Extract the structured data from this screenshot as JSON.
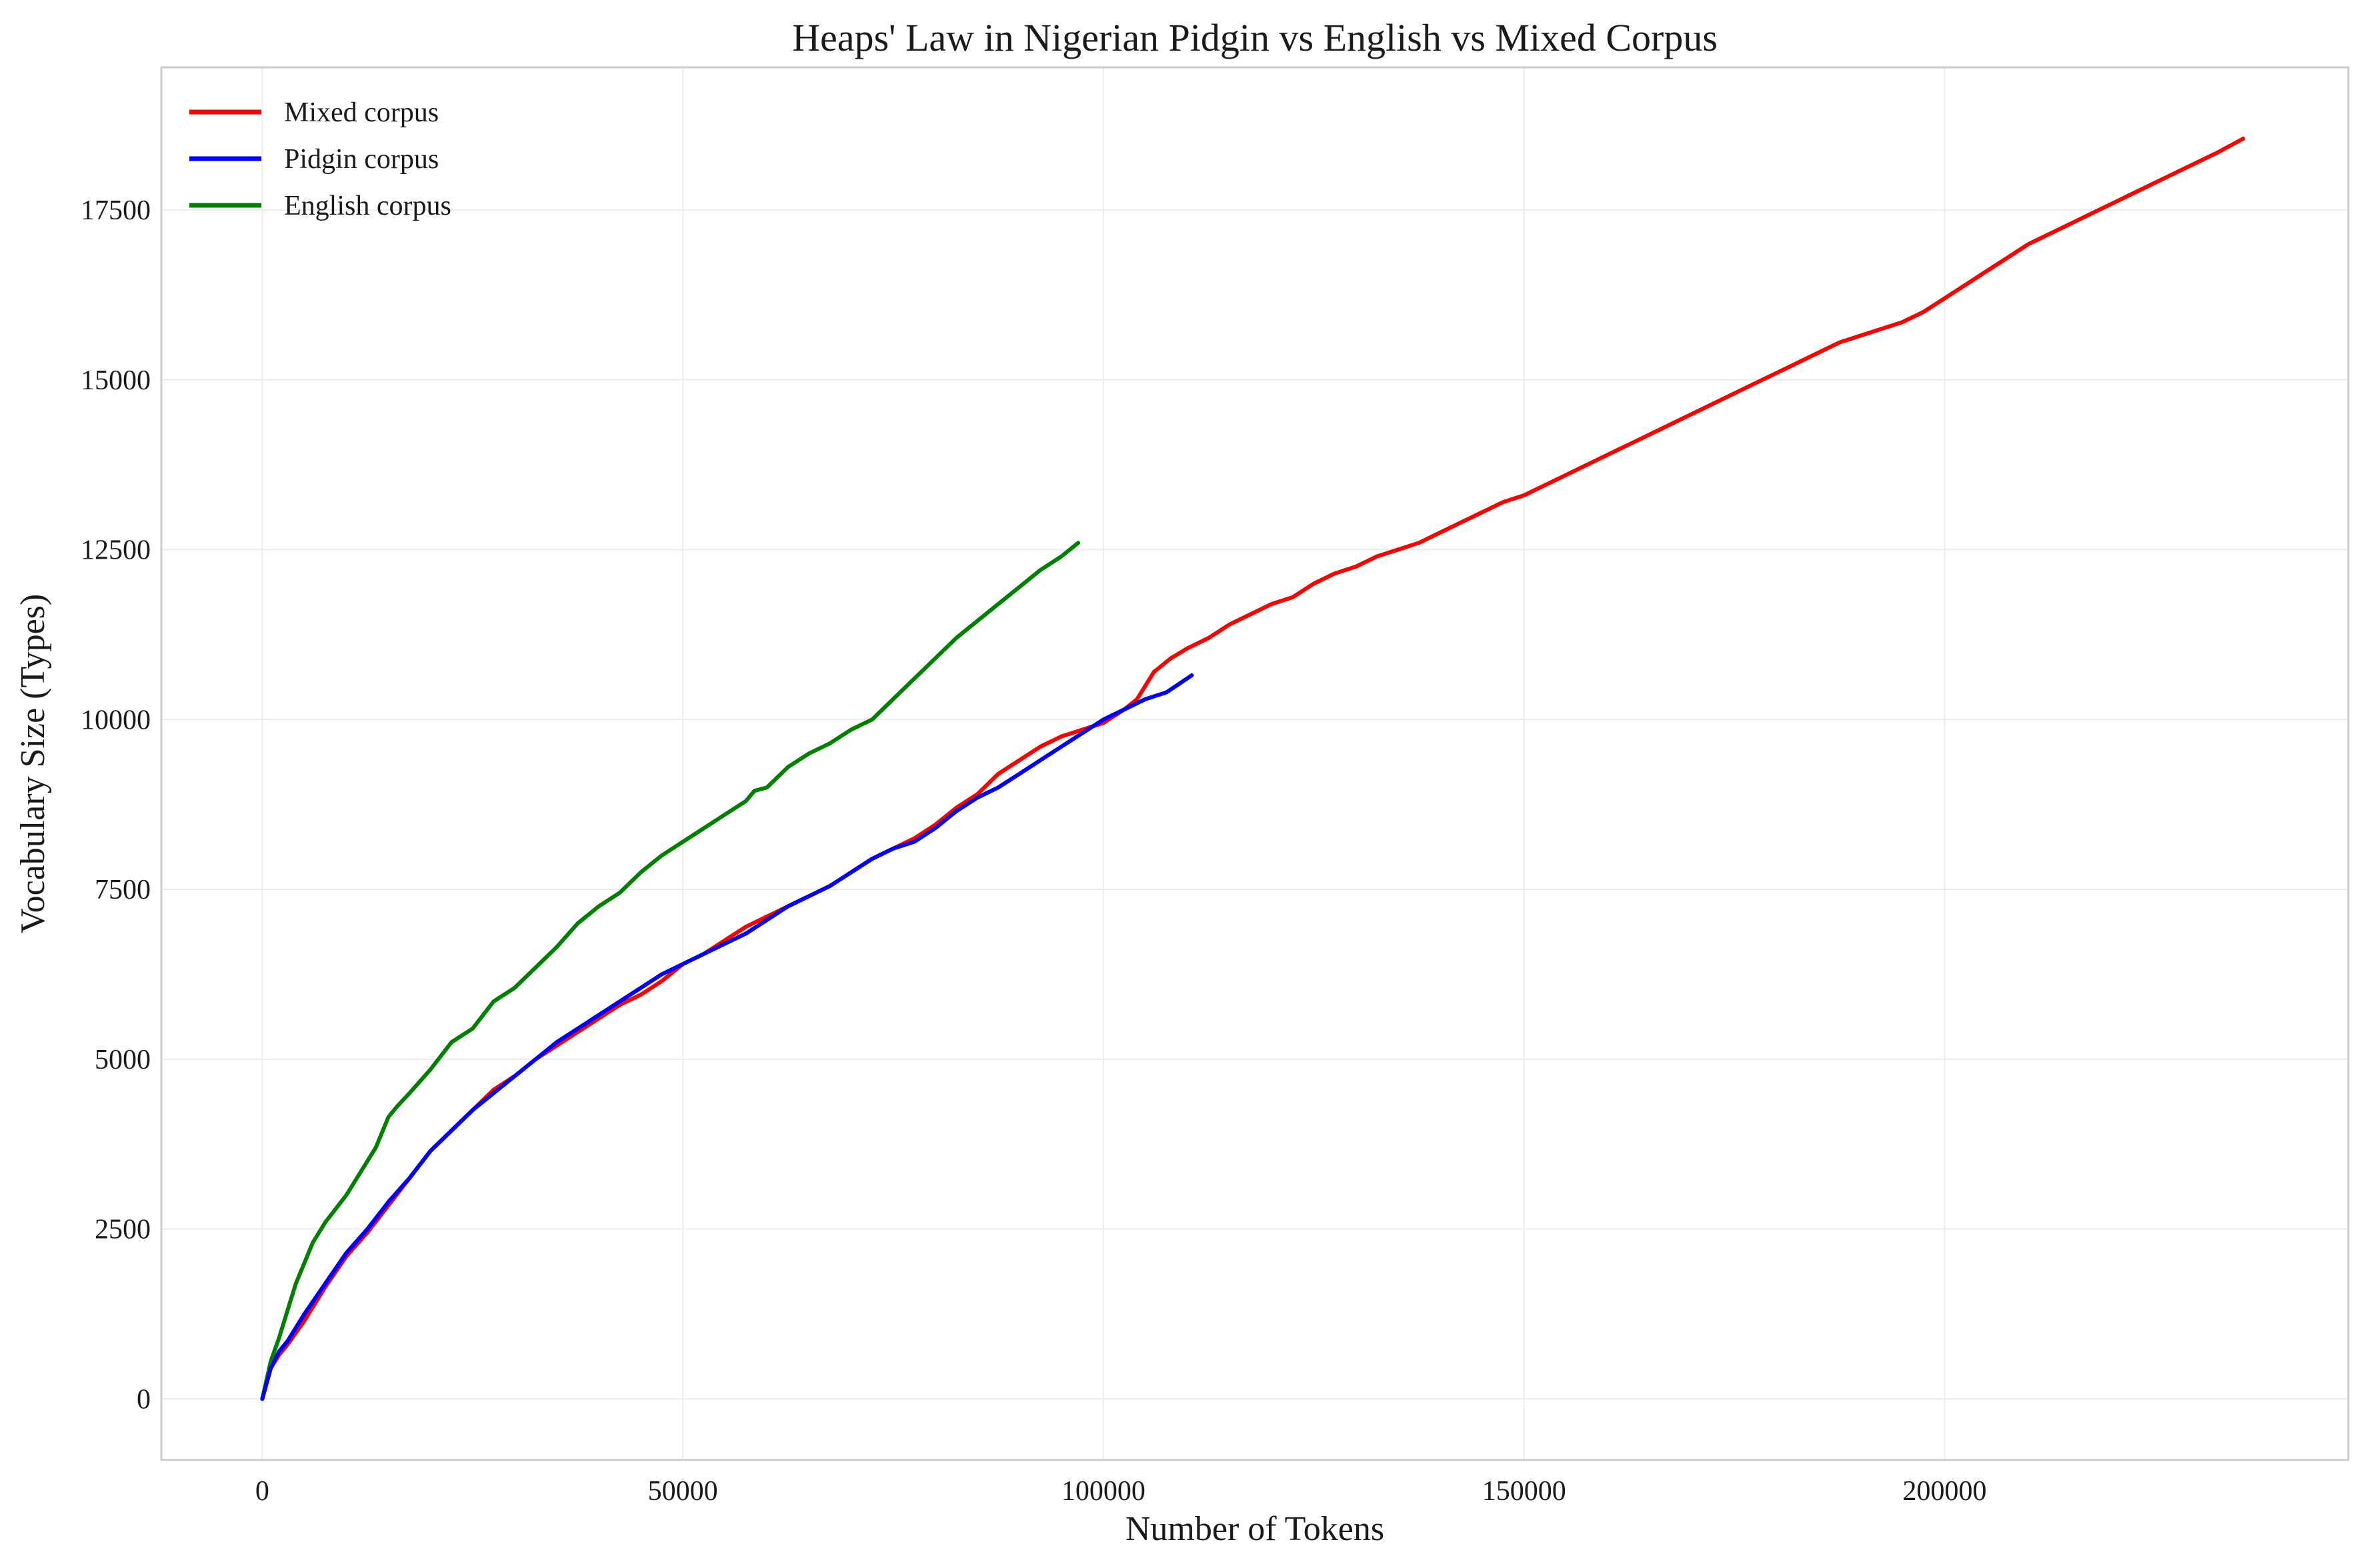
{
  "chart_data": {
    "type": "line",
    "title": "Heaps' Law in Nigerian Pidgin vs English vs Mixed Corpus",
    "xlabel": "Number of Tokens",
    "ylabel": "Vocabulary Size (Types)",
    "xlim": [
      -12000,
      248000
    ],
    "ylim": [
      -900,
      19600
    ],
    "xticks": [
      0,
      50000,
      100000,
      150000,
      200000
    ],
    "yticks": [
      0,
      2500,
      5000,
      7500,
      10000,
      12500,
      15000,
      17500
    ],
    "xtick_labels": [
      "0",
      "50000",
      "100000",
      "150000",
      "200000"
    ],
    "ytick_labels": [
      "0",
      "2500",
      "5000",
      "7500",
      "10000",
      "12500",
      "15000",
      "17500"
    ],
    "grid": true,
    "legend_position": "top-left",
    "series": [
      {
        "name": "Mixed corpus",
        "color": "#ff0000",
        "points": [
          [
            0,
            0
          ],
          [
            1000,
            450
          ],
          [
            2000,
            650
          ],
          [
            3000,
            800
          ],
          [
            5000,
            1150
          ],
          [
            7500,
            1650
          ],
          [
            10000,
            2100
          ],
          [
            12500,
            2450
          ],
          [
            15000,
            2850
          ],
          [
            17500,
            3250
          ],
          [
            20000,
            3650
          ],
          [
            22500,
            3950
          ],
          [
            25000,
            4250
          ],
          [
            27500,
            4550
          ],
          [
            30000,
            4750
          ],
          [
            32500,
            5000
          ],
          [
            35000,
            5200
          ],
          [
            37500,
            5400
          ],
          [
            40000,
            5600
          ],
          [
            42500,
            5800
          ],
          [
            45000,
            5950
          ],
          [
            47500,
            6150
          ],
          [
            50000,
            6400
          ],
          [
            52500,
            6550
          ],
          [
            55000,
            6750
          ],
          [
            57500,
            6950
          ],
          [
            60000,
            7100
          ],
          [
            62500,
            7250
          ],
          [
            65000,
            7400
          ],
          [
            67500,
            7550
          ],
          [
            70000,
            7750
          ],
          [
            72500,
            7950
          ],
          [
            75000,
            8100
          ],
          [
            77500,
            8250
          ],
          [
            80000,
            8450
          ],
          [
            82500,
            8700
          ],
          [
            85000,
            8900
          ],
          [
            87500,
            9200
          ],
          [
            90000,
            9400
          ],
          [
            92500,
            9600
          ],
          [
            95000,
            9750
          ],
          [
            97500,
            9850
          ],
          [
            100000,
            9950
          ],
          [
            102500,
            10150
          ],
          [
            104000,
            10300
          ],
          [
            106000,
            10700
          ],
          [
            108000,
            10900
          ],
          [
            110000,
            11050
          ],
          [
            112500,
            11200
          ],
          [
            115000,
            11400
          ],
          [
            117500,
            11550
          ],
          [
            120000,
            11700
          ],
          [
            122500,
            11800
          ],
          [
            125000,
            12000
          ],
          [
            127500,
            12150
          ],
          [
            130000,
            12250
          ],
          [
            132500,
            12400
          ],
          [
            135000,
            12500
          ],
          [
            137500,
            12600
          ],
          [
            140000,
            12750
          ],
          [
            142500,
            12900
          ],
          [
            145000,
            13050
          ],
          [
            147500,
            13200
          ],
          [
            150000,
            13300
          ],
          [
            152500,
            13450
          ],
          [
            155000,
            13600
          ],
          [
            157500,
            13750
          ],
          [
            160000,
            13900
          ],
          [
            162500,
            14050
          ],
          [
            165000,
            14200
          ],
          [
            167500,
            14350
          ],
          [
            170000,
            14500
          ],
          [
            172500,
            14650
          ],
          [
            175000,
            14800
          ],
          [
            177500,
            14950
          ],
          [
            180000,
            15100
          ],
          [
            182500,
            15250
          ],
          [
            185000,
            15400
          ],
          [
            187500,
            15550
          ],
          [
            190000,
            15650
          ],
          [
            192500,
            15750
          ],
          [
            195000,
            15850
          ],
          [
            197500,
            16000
          ],
          [
            200000,
            16200
          ],
          [
            202500,
            16400
          ],
          [
            205000,
            16600
          ],
          [
            207500,
            16800
          ],
          [
            210000,
            17000
          ],
          [
            212500,
            17150
          ],
          [
            215000,
            17300
          ],
          [
            217500,
            17450
          ],
          [
            220000,
            17600
          ],
          [
            222500,
            17750
          ],
          [
            225000,
            17900
          ],
          [
            227500,
            18050
          ],
          [
            230000,
            18200
          ],
          [
            232500,
            18350
          ],
          [
            235500,
            18550
          ]
        ]
      },
      {
        "name": "Pidgin corpus",
        "color": "#0000ff",
        "points": [
          [
            0,
            0
          ],
          [
            1000,
            450
          ],
          [
            2000,
            700
          ],
          [
            3000,
            850
          ],
          [
            5000,
            1250
          ],
          [
            7500,
            1700
          ],
          [
            10000,
            2150
          ],
          [
            12500,
            2500
          ],
          [
            15000,
            2900
          ],
          [
            17500,
            3250
          ],
          [
            20000,
            3650
          ],
          [
            22500,
            3950
          ],
          [
            25000,
            4250
          ],
          [
            27500,
            4500
          ],
          [
            30000,
            4750
          ],
          [
            32500,
            5000
          ],
          [
            35000,
            5250
          ],
          [
            37500,
            5450
          ],
          [
            40000,
            5650
          ],
          [
            42500,
            5850
          ],
          [
            45000,
            6050
          ],
          [
            47500,
            6250
          ],
          [
            50000,
            6400
          ],
          [
            52500,
            6550
          ],
          [
            55000,
            6700
          ],
          [
            57500,
            6850
          ],
          [
            60000,
            7050
          ],
          [
            62500,
            7250
          ],
          [
            65000,
            7400
          ],
          [
            67500,
            7550
          ],
          [
            70000,
            7750
          ],
          [
            72500,
            7950
          ],
          [
            75000,
            8100
          ],
          [
            77500,
            8200
          ],
          [
            80000,
            8400
          ],
          [
            82500,
            8650
          ],
          [
            85000,
            8850
          ],
          [
            87500,
            9000
          ],
          [
            90000,
            9200
          ],
          [
            92500,
            9400
          ],
          [
            95000,
            9600
          ],
          [
            97500,
            9800
          ],
          [
            100000,
            10000
          ],
          [
            102500,
            10150
          ],
          [
            105000,
            10300
          ],
          [
            107500,
            10400
          ],
          [
            110500,
            10650
          ]
        ]
      },
      {
        "name": "English corpus",
        "color": "#008000",
        "points": [
          [
            0,
            0
          ],
          [
            1000,
            550
          ],
          [
            2000,
            900
          ],
          [
            3000,
            1300
          ],
          [
            4000,
            1700
          ],
          [
            5000,
            2000
          ],
          [
            6000,
            2300
          ],
          [
            7500,
            2600
          ],
          [
            10000,
            3000
          ],
          [
            12500,
            3500
          ],
          [
            13500,
            3700
          ],
          [
            15000,
            4150
          ],
          [
            16000,
            4300
          ],
          [
            17500,
            4500
          ],
          [
            20000,
            4850
          ],
          [
            22500,
            5250
          ],
          [
            25000,
            5450
          ],
          [
            27500,
            5850
          ],
          [
            30000,
            6050
          ],
          [
            32500,
            6350
          ],
          [
            35000,
            6650
          ],
          [
            37500,
            7000
          ],
          [
            40000,
            7250
          ],
          [
            42500,
            7450
          ],
          [
            45000,
            7750
          ],
          [
            47500,
            8000
          ],
          [
            50000,
            8200
          ],
          [
            52500,
            8400
          ],
          [
            55000,
            8600
          ],
          [
            57500,
            8800
          ],
          [
            58500,
            8950
          ],
          [
            60000,
            9000
          ],
          [
            62500,
            9300
          ],
          [
            65000,
            9500
          ],
          [
            67500,
            9650
          ],
          [
            70000,
            9850
          ],
          [
            72500,
            10000
          ],
          [
            75000,
            10300
          ],
          [
            77500,
            10600
          ],
          [
            80000,
            10900
          ],
          [
            82500,
            11200
          ],
          [
            85000,
            11450
          ],
          [
            87500,
            11700
          ],
          [
            90000,
            11950
          ],
          [
            92500,
            12200
          ],
          [
            95000,
            12400
          ],
          [
            97000,
            12600
          ]
        ]
      }
    ]
  }
}
